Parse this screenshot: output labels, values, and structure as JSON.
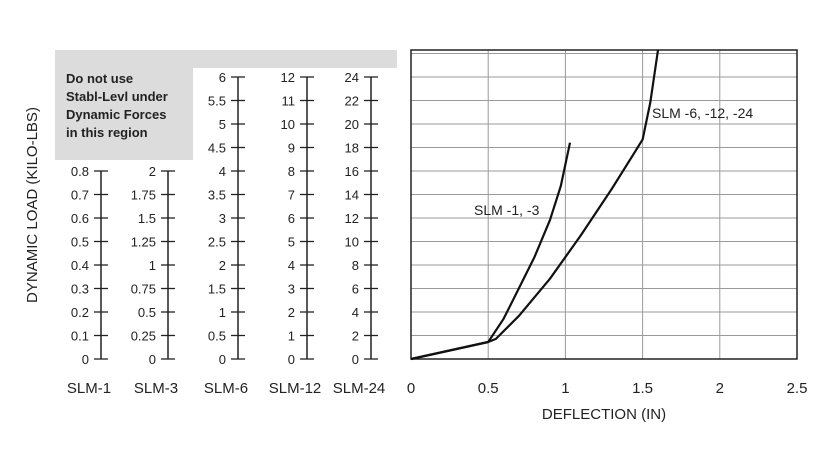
{
  "chart_data": {
    "type": "line",
    "ylabel": "DYNAMIC LOAD (KILO-LBS)",
    "xlabel": "DEFLECTION (IN)",
    "xlim": [
      0,
      2.5
    ],
    "x_ticks": [
      "0",
      "0.5",
      "1",
      "1.5",
      "2",
      "2.5"
    ],
    "grid": true,
    "shaded_note": [
      "Do not use",
      "Stabl-Levl under",
      "Dynamic Forces",
      "in this region"
    ],
    "scales": [
      {
        "name": "SLM-1",
        "max": 0.8,
        "ticks": [
          "0",
          "0.1",
          "0.2",
          "0.3",
          "0.4",
          "0.5",
          "0.6",
          "0.7",
          "0.8"
        ]
      },
      {
        "name": "SLM-3",
        "max": 2,
        "ticks": [
          "0",
          "0.25",
          "0.5",
          "0.75",
          "1",
          "1.25",
          "1.5",
          "1.75",
          "2"
        ]
      },
      {
        "name": "SLM-6",
        "max": 6,
        "ticks": [
          "0",
          "0.5",
          "1",
          "1.5",
          "2",
          "2.5",
          "3",
          "3.5",
          "4",
          "4.5",
          "5",
          "5.5",
          "6"
        ]
      },
      {
        "name": "SLM-12",
        "max": 12,
        "ticks": [
          "0",
          "1",
          "2",
          "3",
          "4",
          "5",
          "6",
          "7",
          "8",
          "9",
          "10",
          "11",
          "12"
        ]
      },
      {
        "name": "SLM-24",
        "max": 24,
        "ticks": [
          "0",
          "2",
          "4",
          "6",
          "8",
          "10",
          "12",
          "14",
          "16",
          "18",
          "20",
          "22",
          "24"
        ]
      }
    ],
    "series": [
      {
        "name": "SLM -1, -3",
        "x": [
          0,
          0.5,
          0.6,
          0.7,
          0.8,
          0.9,
          0.97,
          1.0,
          1.03
        ],
        "y_fraction": [
          0,
          0.055,
          0.13,
          0.23,
          0.33,
          0.45,
          0.56,
          0.63,
          0.7
        ]
      },
      {
        "name": "SLM -6, -12, -24",
        "x": [
          0,
          0.5,
          0.55,
          0.7,
          0.9,
          1.1,
          1.3,
          1.5,
          1.55,
          1.6
        ],
        "y_fraction": [
          0,
          0.055,
          0.065,
          0.14,
          0.26,
          0.4,
          0.55,
          0.71,
          0.83,
          1.0
        ]
      }
    ]
  }
}
